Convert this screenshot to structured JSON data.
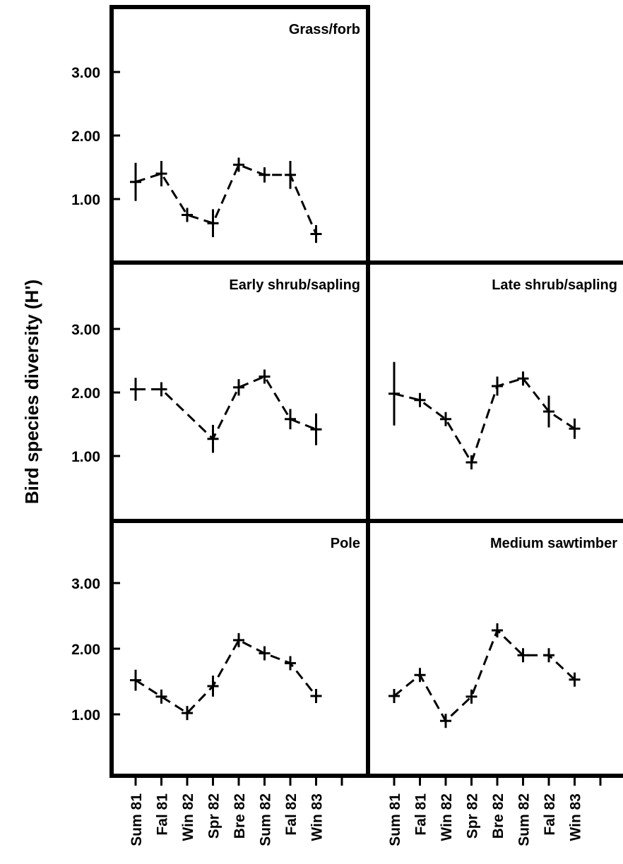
{
  "ylabel": "Bird species diversity (H')",
  "chart_data": [
    {
      "type": "line",
      "title": "Grass/forb",
      "ylabel": "Bird species diversity (H')",
      "categories": [
        "Sum 81",
        "Fal 81",
        "Win 82",
        "Spr 82",
        "Bre 82",
        "Sum 82",
        "Fal 82",
        "Win 83"
      ],
      "yticks": [
        "1.00",
        "2.00",
        "3.00"
      ],
      "ylim": [
        0,
        4.0
      ],
      "values": [
        1.27,
        1.4,
        0.75,
        0.62,
        1.54,
        1.38,
        1.38,
        0.45
      ],
      "error": [
        0.3,
        0.2,
        0.08,
        0.22,
        0.06,
        0.12,
        0.22,
        0.14
      ]
    },
    {
      "type": "line",
      "title": "Early shrub/sapling",
      "ylabel": "Bird species diversity (H')",
      "categories": [
        "Sum 81",
        "Fal 81",
        "Win 82",
        "Spr 82",
        "Bre 82",
        "Sum 82",
        "Fal 82",
        "Win 83"
      ],
      "yticks": [
        "1.00",
        "2.00",
        "3.00"
      ],
      "ylim": [
        0,
        4.0
      ],
      "values": [
        2.05,
        2.05,
        null,
        1.27,
        2.08,
        2.25,
        1.58,
        1.42
      ],
      "error": [
        0.18,
        0.06,
        null,
        0.22,
        0.13,
        0.08,
        0.16,
        0.25
      ]
    },
    {
      "type": "line",
      "title": "Late shrub/sapling",
      "ylabel": "",
      "categories": [
        "Sum 81",
        "Fal 81",
        "Win 82",
        "Spr 82",
        "Bre 82",
        "Sum 82",
        "Fal 82",
        "Win 83"
      ],
      "yticks": [],
      "ylim": [
        0,
        4.0
      ],
      "values": [
        1.98,
        1.88,
        1.58,
        0.9,
        2.1,
        2.22,
        1.7,
        1.43
      ],
      "error": [
        0.5,
        0.06,
        0.1,
        0.08,
        0.15,
        0.08,
        0.25,
        0.16
      ]
    },
    {
      "type": "line",
      "title": "Pole",
      "ylabel": "Bird species diversity (H')",
      "categories": [
        "Sum 81",
        "Fal 81",
        "Win 82",
        "Spr 82",
        "Bre 82",
        "Sum 82",
        "Fal 82",
        "Win 83"
      ],
      "yticks": [
        "1.00",
        "2.00",
        "3.00"
      ],
      "ylim": [
        0,
        4.0
      ],
      "values": [
        1.52,
        1.27,
        1.02,
        1.43,
        2.13,
        1.93,
        1.78,
        1.28
      ],
      "error": [
        0.16,
        0.07,
        0.06,
        0.16,
        0.1,
        0.08,
        0.06,
        0.05
      ]
    },
    {
      "type": "line",
      "title": "Medium sawtimber",
      "ylabel": "",
      "categories": [
        "Sum 81",
        "Fal 81",
        "Win 82",
        "Spr 82",
        "Bre 82",
        "Sum 82",
        "Fal 82",
        "Win 83"
      ],
      "yticks": [],
      "ylim": [
        0,
        4.0
      ],
      "values": [
        1.28,
        1.6,
        0.9,
        1.27,
        2.28,
        1.9,
        1.9,
        1.53
      ],
      "error": [
        0.05,
        0.06,
        0.06,
        0.06,
        0.1,
        0.05,
        0.05,
        0.05
      ]
    }
  ]
}
